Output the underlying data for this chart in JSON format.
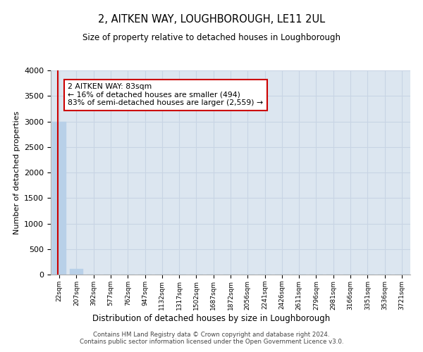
{
  "title": "2, AITKEN WAY, LOUGHBOROUGH, LE11 2UL",
  "subtitle": "Size of property relative to detached houses in Loughborough",
  "xlabel": "Distribution of detached houses by size in Loughborough",
  "ylabel": "Number of detached properties",
  "footer_line1": "Contains HM Land Registry data © Crown copyright and database right 2024.",
  "footer_line2": "Contains public sector information licensed under the Open Government Licence v3.0.",
  "bar_labels": [
    "22sqm",
    "207sqm",
    "392sqm",
    "577sqm",
    "762sqm",
    "947sqm",
    "1132sqm",
    "1317sqm",
    "1502sqm",
    "1687sqm",
    "1872sqm",
    "2056sqm",
    "2241sqm",
    "2426sqm",
    "2611sqm",
    "2796sqm",
    "2981sqm",
    "3166sqm",
    "3351sqm",
    "3536sqm",
    "3721sqm"
  ],
  "bar_values": [
    3000,
    110,
    5,
    2,
    1,
    1,
    1,
    1,
    1,
    1,
    1,
    1,
    1,
    1,
    1,
    1,
    1,
    1,
    1,
    1,
    1
  ],
  "bar_color": "#b8d0e8",
  "bar_edge_color": "#b8d0e8",
  "ylim": [
    0,
    4000
  ],
  "yticks": [
    0,
    500,
    1000,
    1500,
    2000,
    2500,
    3000,
    3500,
    4000
  ],
  "grid_color": "#c8d4e4",
  "bg_color": "#dce6f0",
  "annotation_text": "2 AITKEN WAY: 83sqm\n← 16% of detached houses are smaller (494)\n83% of semi-detached houses are larger (2,559) →",
  "annotation_box_color": "#cc0000",
  "property_line_x": -0.1,
  "title_fontsize": 10,
  "subtitle_fontsize": 9
}
